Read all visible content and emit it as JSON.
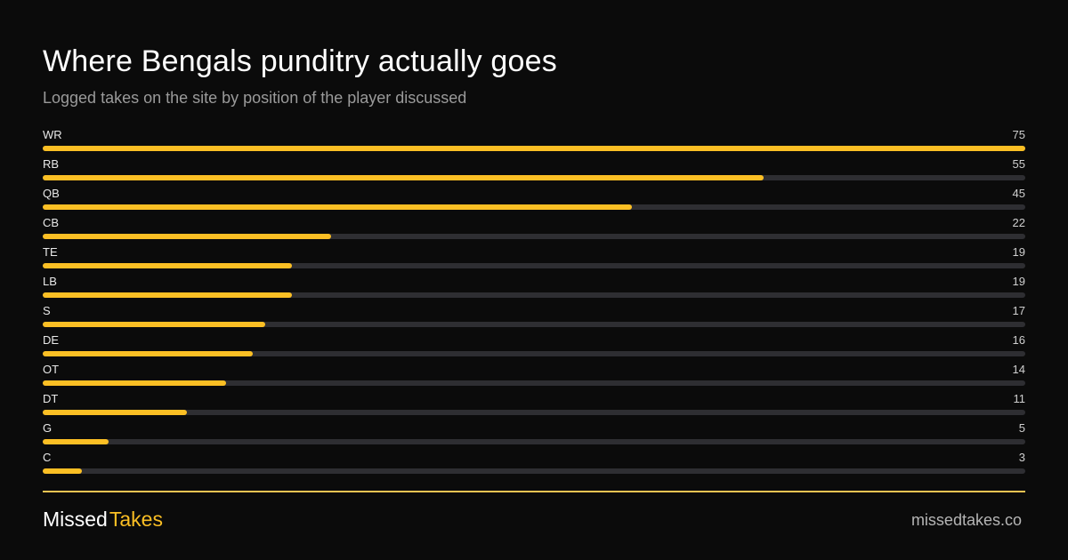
{
  "header": {
    "title": "Where Bengals punditry actually goes",
    "subtitle": "Logged takes on the site by position of the player discussed"
  },
  "footer": {
    "brand_part1": "Missed",
    "brand_part2": "Takes",
    "site": "missedtakes.co"
  },
  "colors": {
    "background": "#0b0b0b",
    "bar_fill": "#fbbf24",
    "bar_track": "#2e2e32",
    "divider": "#f6c453"
  },
  "chart_data": {
    "type": "bar",
    "orientation": "horizontal",
    "categories": [
      "WR",
      "RB",
      "QB",
      "CB",
      "TE",
      "LB",
      "S",
      "DE",
      "OT",
      "DT",
      "G",
      "C"
    ],
    "values": [
      75,
      55,
      45,
      22,
      19,
      19,
      17,
      16,
      14,
      11,
      5,
      3
    ],
    "title": "Where Bengals punditry actually goes",
    "subtitle": "Logged takes on the site by position of the player discussed",
    "xlabel": "",
    "ylabel": "",
    "xlim": [
      0,
      75
    ],
    "grid": false,
    "legend": "none"
  }
}
